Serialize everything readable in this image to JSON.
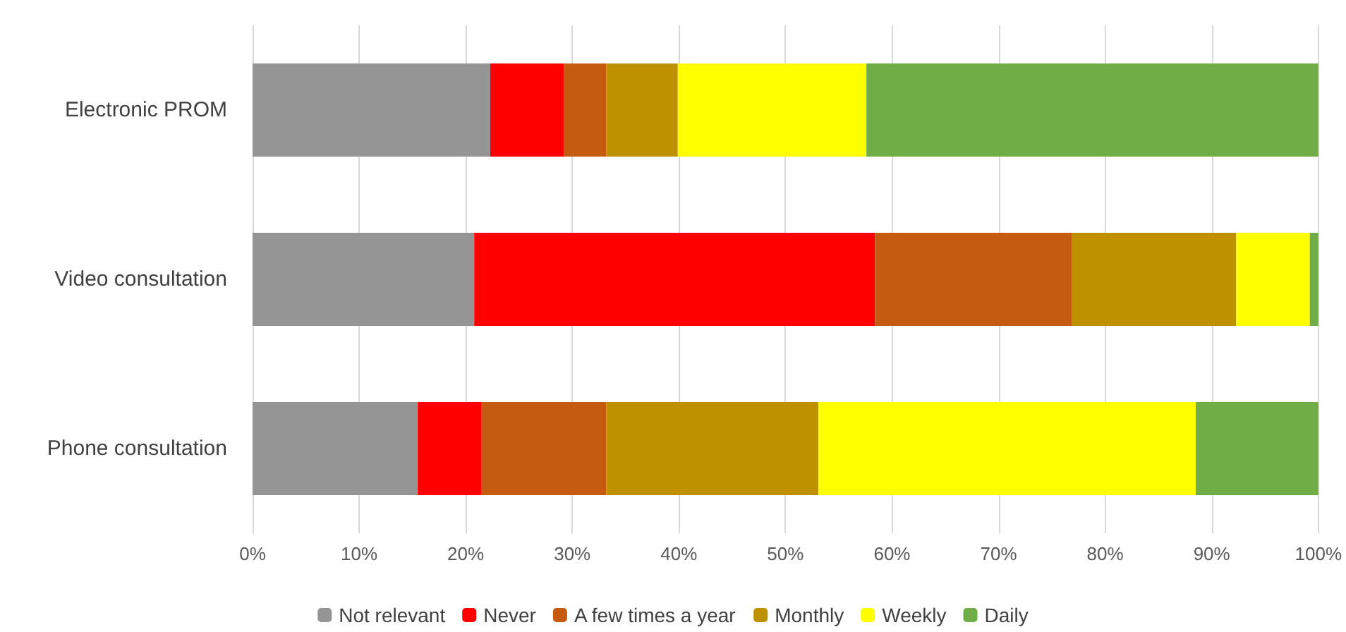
{
  "chart_data": {
    "type": "bar",
    "orientation": "horizontal",
    "stacked": true,
    "categories": [
      "Electronic PROM",
      "Video consultation",
      "Phone consultation"
    ],
    "series": [
      {
        "name": "Not relevant",
        "color": "#959595",
        "values": [
          22.3,
          20.8,
          15.5
        ]
      },
      {
        "name": "Never",
        "color": "#ff0000",
        "values": [
          6.9,
          37.6,
          6.0
        ]
      },
      {
        "name": "A few times a year",
        "color": "#c55a11",
        "values": [
          4.0,
          18.5,
          11.7
        ]
      },
      {
        "name": "Monthly",
        "color": "#bf9000",
        "values": [
          6.7,
          15.4,
          19.9
        ]
      },
      {
        "name": "Weekly",
        "color": "#ffff00",
        "values": [
          17.7,
          6.9,
          35.4
        ]
      },
      {
        "name": "Daily",
        "color": "#70ad47",
        "values": [
          42.4,
          0.8,
          11.5
        ]
      }
    ],
    "xlim": [
      0,
      100
    ],
    "xticks": [
      {
        "value": 0,
        "label": "0%"
      },
      {
        "value": 10,
        "label": "10%"
      },
      {
        "value": 20,
        "label": "20%"
      },
      {
        "value": 30,
        "label": "30%"
      },
      {
        "value": 40,
        "label": "40%"
      },
      {
        "value": 50,
        "label": "50%"
      },
      {
        "value": 60,
        "label": "60%"
      },
      {
        "value": 70,
        "label": "70%"
      },
      {
        "value": 80,
        "label": "80%"
      },
      {
        "value": 90,
        "label": "90%"
      },
      {
        "value": 100,
        "label": "100%"
      }
    ],
    "grid": "x",
    "legend": "bottom"
  }
}
